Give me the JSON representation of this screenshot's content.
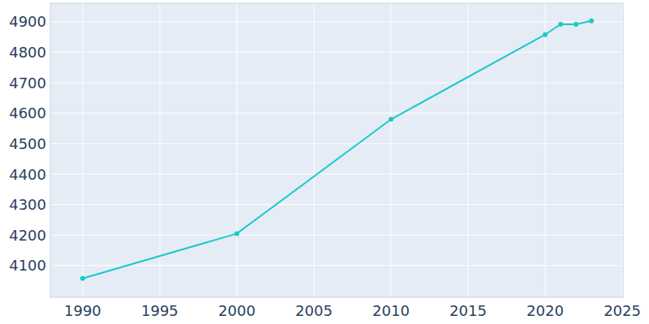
{
  "chart_data": {
    "type": "line",
    "x": [
      1990,
      2000,
      2010,
      2020,
      2021,
      2022,
      2023
    ],
    "values": [
      4058,
      4205,
      4580,
      4858,
      4892,
      4892,
      4903
    ],
    "color": "#1cc8c8",
    "marker": "circle",
    "xlim": [
      1987.9,
      2025.05
    ],
    "xticks": [
      1990,
      1995,
      2000,
      2005,
      2010,
      2015,
      2020,
      2025
    ],
    "ylim": [
      3996,
      4961
    ],
    "yticks": [
      4100,
      4200,
      4300,
      4400,
      4500,
      4600,
      4700,
      4800,
      4900
    ],
    "grid": true
  }
}
